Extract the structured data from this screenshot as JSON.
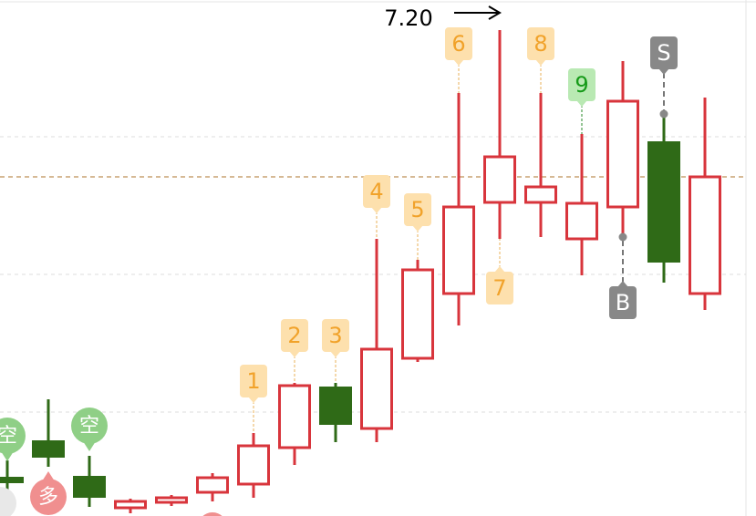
{
  "chart_data": {
    "type": "candlestick",
    "categories": [
      null,
      null,
      null,
      null,
      null,
      null,
      null,
      null,
      null,
      null,
      null,
      null,
      null,
      null,
      null,
      null,
      null,
      null
    ],
    "open": [
      6.22,
      6.3,
      6.222,
      6.152,
      6.164,
      6.186,
      6.204,
      6.284,
      6.418,
      6.326,
      6.48,
      6.622,
      6.822,
      6.822,
      6.742,
      6.812,
      6.956,
      6.622
    ],
    "high": [
      6.256,
      6.39,
      6.266,
      6.172,
      6.18,
      6.228,
      6.316,
      6.426,
      6.426,
      6.742,
      6.696,
      7.062,
      7.2,
      7.062,
      6.972,
      7.132,
      7.016,
      7.052
    ],
    "low": [
      6.186,
      6.242,
      6.154,
      6.14,
      6.156,
      6.166,
      6.174,
      6.246,
      6.296,
      6.296,
      6.472,
      6.552,
      6.742,
      6.746,
      6.662,
      6.75,
      6.646,
      6.586
    ],
    "close": [
      6.206,
      6.262,
      6.174,
      6.166,
      6.174,
      6.218,
      6.288,
      6.42,
      6.334,
      6.5,
      6.674,
      6.812,
      6.922,
      6.856,
      6.82,
      7.044,
      6.69,
      6.878
    ],
    "up_color": "#d8353c",
    "down_color": "#2f6a17",
    "ylim": [
      6.134,
      7.266
    ],
    "gridlines": [
      6.966,
      6.664,
      6.362
    ],
    "reference_line": 6.878,
    "high_label": {
      "value": 7.2,
      "label": "7.20"
    },
    "annotations": [
      "1",
      "2",
      "3",
      "4",
      "5",
      "6",
      "7",
      "8",
      "9",
      "S",
      "B",
      "空",
      "空",
      "多"
    ]
  }
}
